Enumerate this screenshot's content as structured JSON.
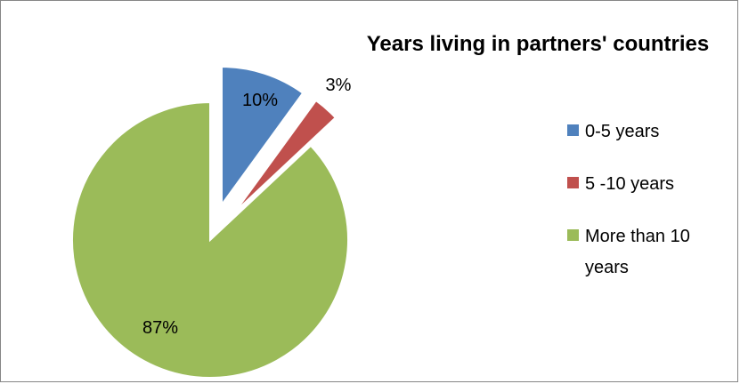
{
  "chart_data": {
    "type": "pie",
    "title": "Years living in partners' countries",
    "slices": [
      {
        "label": "0-5 years",
        "value": 10,
        "data_label": "10%",
        "color": "#4F81BD",
        "exploded": true
      },
      {
        "label": "5 -10 years",
        "value": 3,
        "data_label": "3%",
        "color": "#C0504D",
        "exploded": true
      },
      {
        "label": "More than 10 years",
        "value": 87,
        "data_label": "87%",
        "color": "#9BBB59",
        "exploded": false
      }
    ],
    "legend": {
      "placement": "right",
      "items": [
        {
          "lines": [
            "0-5 years"
          ],
          "color": "#4F81BD"
        },
        {
          "lines": [
            "5 -10 years"
          ],
          "color": "#C0504D"
        },
        {
          "lines": [
            "More than 10",
            "years"
          ],
          "color": "#9BBB59"
        }
      ]
    }
  }
}
